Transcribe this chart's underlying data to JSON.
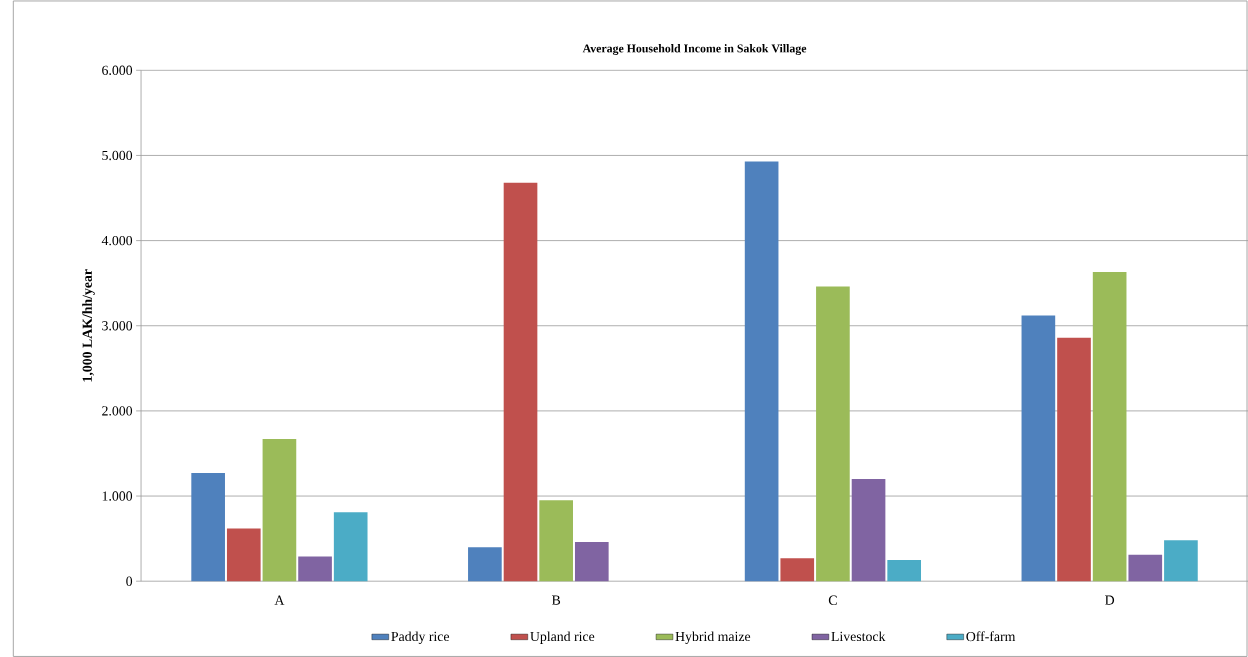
{
  "chart_data": {
    "type": "bar",
    "title": "Average Household Income in Sakok Village",
    "ylabel": "1,000 LAK/hh/year",
    "categories": [
      "A",
      "B",
      "C",
      "D"
    ],
    "series": [
      {
        "name": "Paddy rice",
        "color": "#4f81bd",
        "values": [
          1270,
          400,
          4930,
          3120
        ]
      },
      {
        "name": "Upland rice",
        "color": "#c0504d",
        "values": [
          620,
          4680,
          270,
          2860
        ]
      },
      {
        "name": "Hybrid maize",
        "color": "#9bbb59",
        "values": [
          1670,
          950,
          3460,
          3630
        ]
      },
      {
        "name": "Livestock",
        "color": "#8064a2",
        "values": [
          290,
          460,
          1200,
          310
        ]
      },
      {
        "name": "Off-farm",
        "color": "#4bacc6",
        "values": [
          810,
          null,
          250,
          480
        ]
      }
    ],
    "ylim": [
      0,
      6000
    ],
    "yticks": [
      0,
      {
        "value": 1000,
        "label": "1.000"
      },
      {
        "value": 2000,
        "label": "2.000"
      },
      {
        "value": 3000,
        "label": "3.000"
      },
      {
        "value": 4000,
        "label": "4.000"
      },
      {
        "value": 5000,
        "label": "5.000"
      },
      {
        "value": 6000,
        "label": "6.000"
      }
    ],
    "grid": "y",
    "legend": "bottom"
  }
}
